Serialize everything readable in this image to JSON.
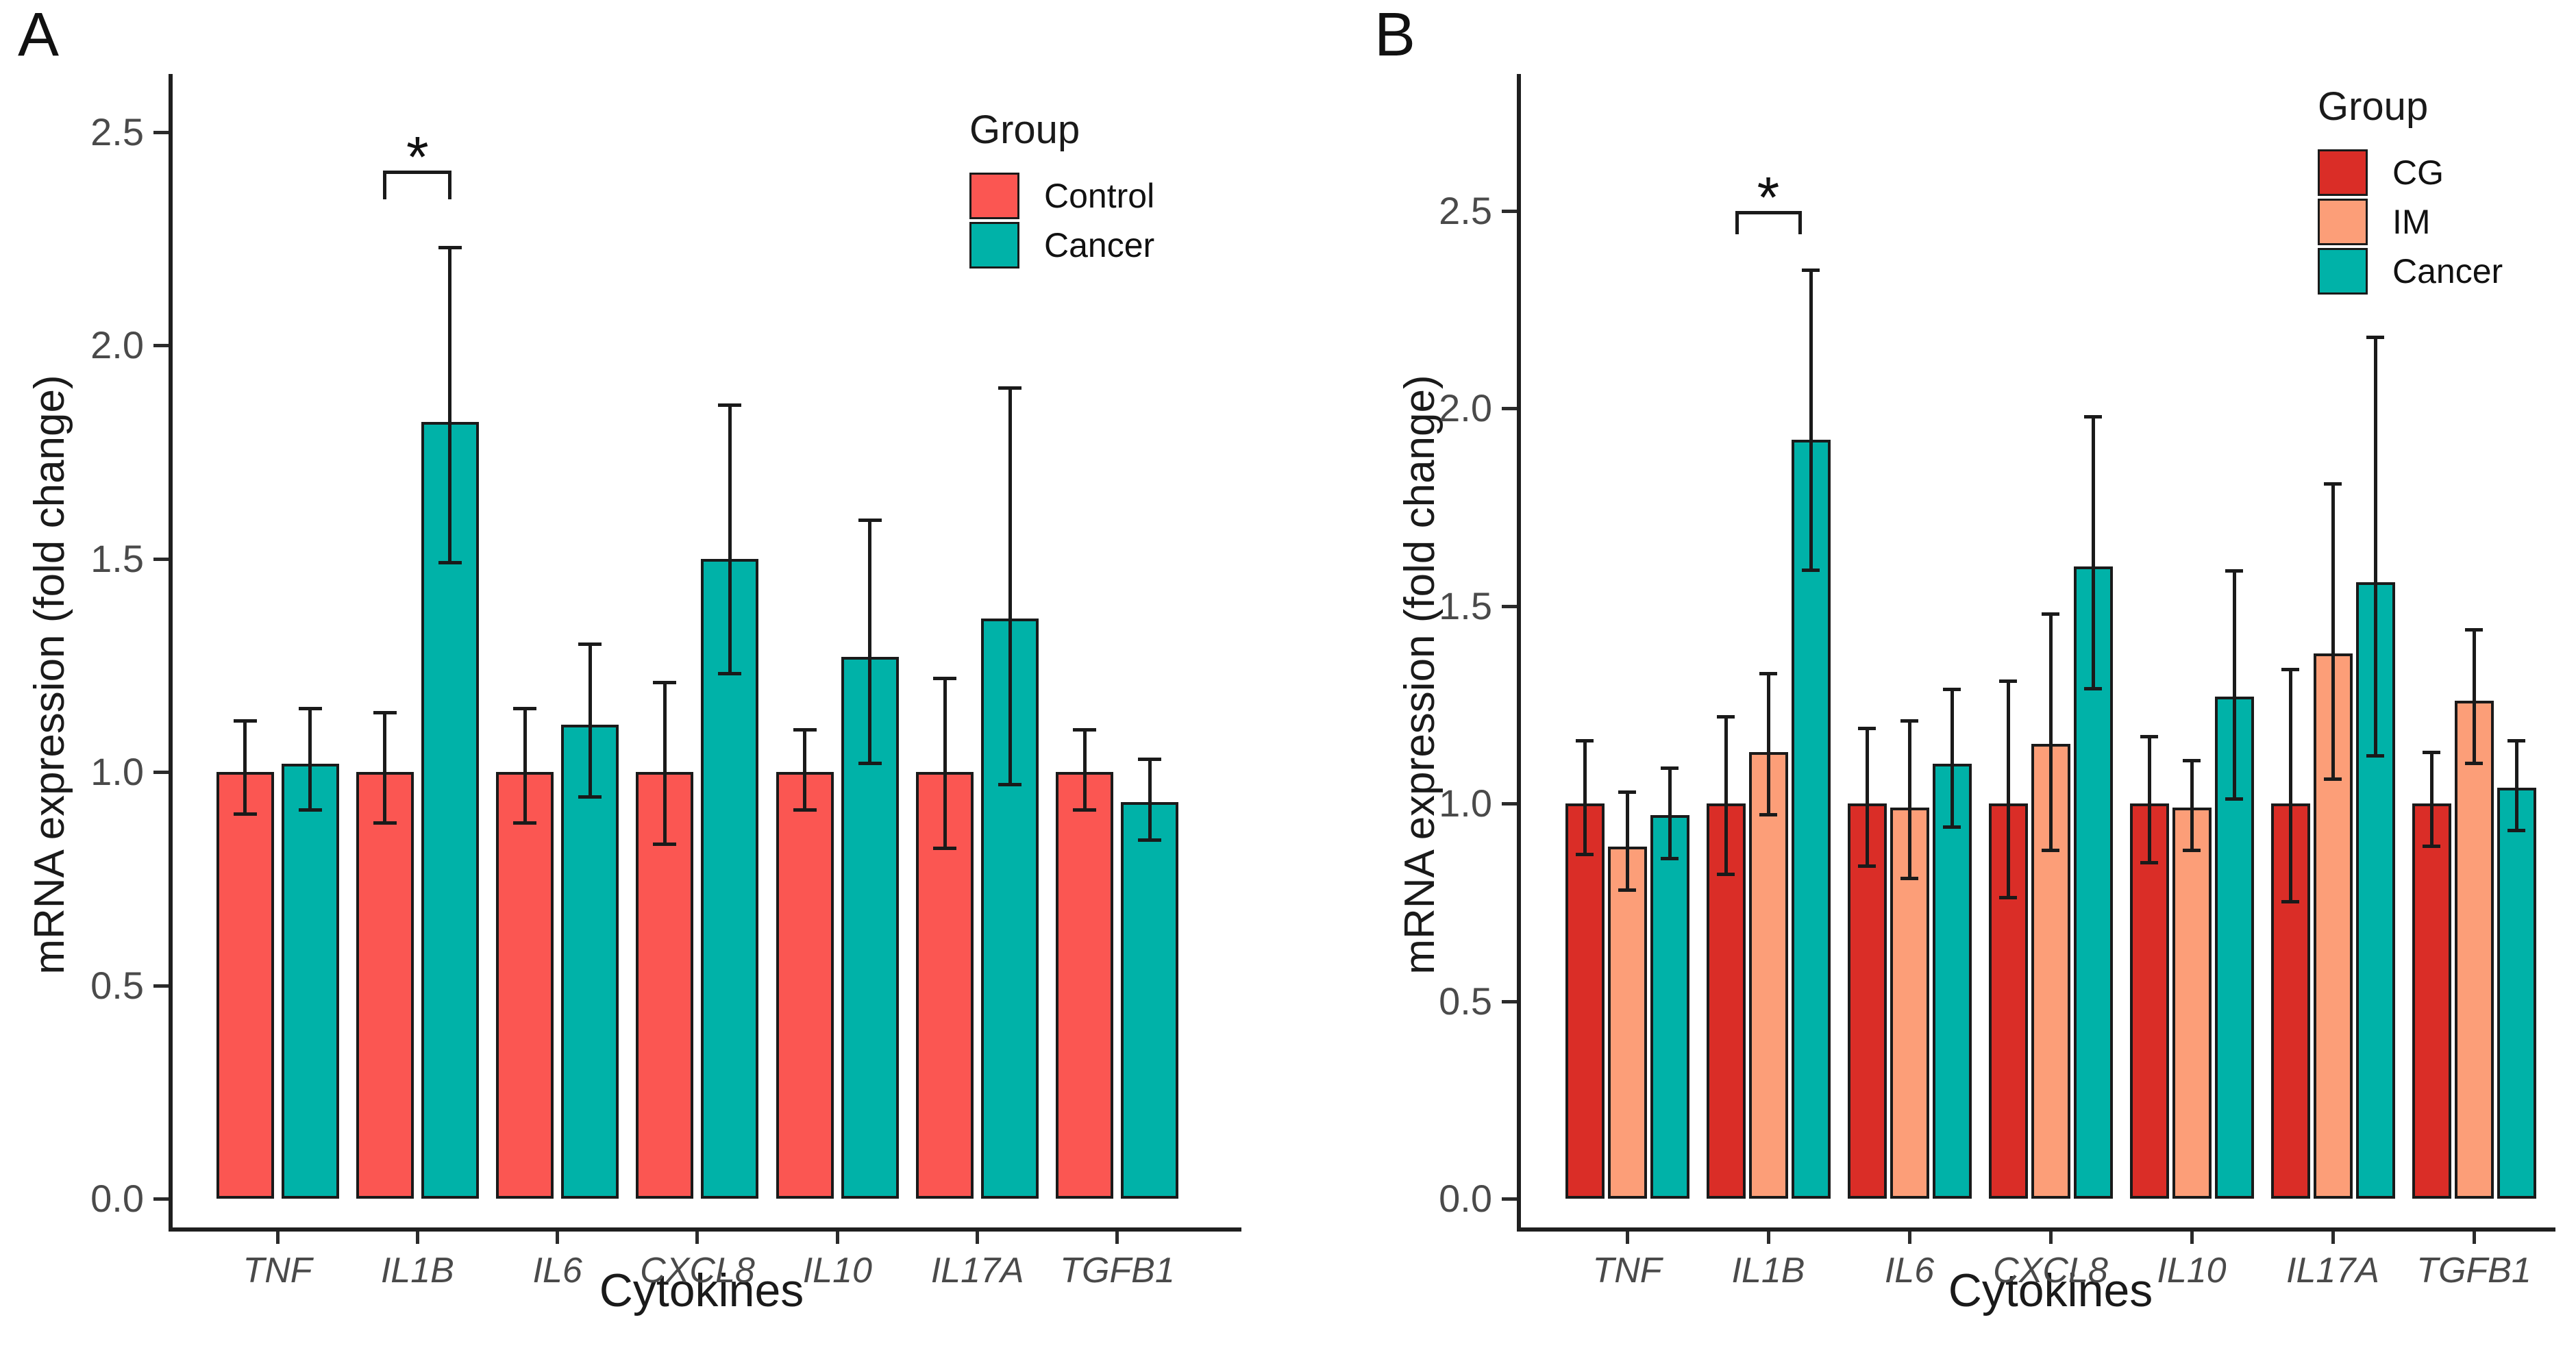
{
  "chart_data": [
    {
      "type": "bar",
      "panel_label": "A",
      "xlabel": "Cytokines",
      "ylabel": "mRNA expression (fold change)",
      "categories": [
        "TNF",
        "IL1B",
        "IL6",
        "CXCL8",
        "IL10",
        "IL17A",
        "TGFB1"
      ],
      "yticks": [
        0.0,
        0.5,
        1.0,
        1.5,
        2.0,
        2.5
      ],
      "ylim": [
        0,
        2.65
      ],
      "grid": false,
      "bar_outline_color": "#1A1A1A",
      "error_bar_color": "#1A1A1A",
      "legend": {
        "title": "Group",
        "position": "top-right-inside"
      },
      "series": [
        {
          "name": "Control",
          "color": "#FB5652",
          "values": [
            1.0,
            1.0,
            1.0,
            1.0,
            1.0,
            1.0,
            1.0
          ],
          "err_low": [
            0.9,
            0.88,
            0.88,
            0.83,
            0.91,
            0.82,
            0.91
          ],
          "err_high": [
            1.12,
            1.14,
            1.15,
            1.21,
            1.1,
            1.22,
            1.1
          ]
        },
        {
          "name": "Cancer",
          "color": "#00B2A8",
          "values": [
            1.02,
            1.82,
            1.11,
            1.5,
            1.27,
            1.36,
            0.93
          ],
          "err_low": [
            0.91,
            1.49,
            0.94,
            1.23,
            1.02,
            0.97,
            0.84
          ],
          "err_high": [
            1.15,
            2.23,
            1.3,
            1.86,
            1.59,
            1.9,
            1.03
          ]
        }
      ],
      "annotations": [
        {
          "type": "significance-bracket",
          "label": "*",
          "category": "IL1B",
          "between_series": [
            "Control",
            "Cancer"
          ],
          "bracket_y": 2.41
        }
      ]
    },
    {
      "type": "bar",
      "panel_label": "B",
      "xlabel": "Cytokines",
      "ylabel": "mRNA expression (fold change)",
      "categories": [
        "TNF",
        "IL1B",
        "IL6",
        "CXCL8",
        "IL10",
        "IL17A",
        "TGFB1"
      ],
      "yticks": [
        0.0,
        0.5,
        1.0,
        1.5,
        2.0,
        2.5
      ],
      "ylim": [
        0,
        2.85
      ],
      "grid": false,
      "bar_outline_color": "#1A1A1A",
      "error_bar_color": "#1A1A1A",
      "legend": {
        "title": "Group",
        "position": "top-right-inside"
      },
      "series": [
        {
          "name": "CG",
          "color": "#DA2D27",
          "values": [
            1.0,
            1.0,
            1.0,
            1.0,
            1.0,
            1.0,
            1.0
          ],
          "err_low": [
            0.87,
            0.82,
            0.84,
            0.76,
            0.85,
            0.75,
            0.89
          ],
          "err_high": [
            1.16,
            1.22,
            1.19,
            1.31,
            1.17,
            1.34,
            1.13
          ]
        },
        {
          "name": "IM",
          "color": "#FC9E78",
          "values": [
            0.89,
            1.13,
            0.99,
            1.15,
            0.99,
            1.38,
            1.26
          ],
          "err_low": [
            0.78,
            0.97,
            0.81,
            0.88,
            0.88,
            1.06,
            1.1
          ],
          "err_high": [
            1.03,
            1.33,
            1.21,
            1.48,
            1.11,
            1.81,
            1.44
          ]
        },
        {
          "name": "Cancer",
          "color": "#00B2A8",
          "values": [
            0.97,
            1.92,
            1.1,
            1.6,
            1.27,
            1.56,
            1.04
          ],
          "err_low": [
            0.86,
            1.59,
            0.94,
            1.29,
            1.01,
            1.12,
            0.93
          ],
          "err_high": [
            1.09,
            2.35,
            1.29,
            1.98,
            1.59,
            2.18,
            1.16
          ]
        }
      ],
      "annotations": [
        {
          "type": "significance-bracket",
          "label": "*",
          "category": "IL1B",
          "between_series": [
            "CG",
            "Cancer"
          ],
          "bracket_y": 2.5
        }
      ]
    }
  ]
}
